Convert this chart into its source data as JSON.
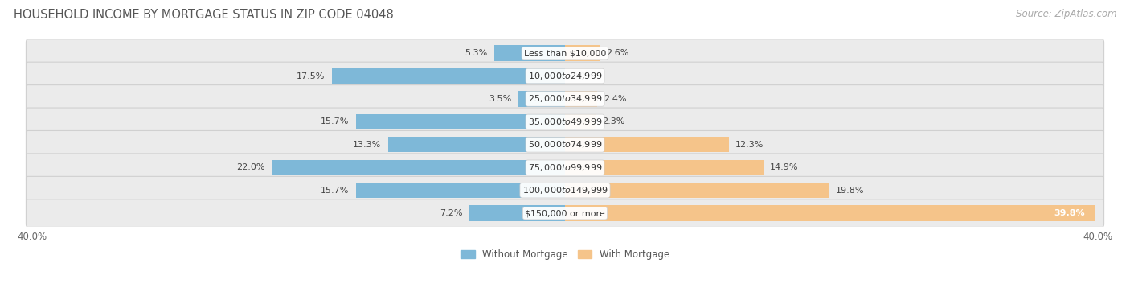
{
  "title": "HOUSEHOLD INCOME BY MORTGAGE STATUS IN ZIP CODE 04048",
  "source": "Source: ZipAtlas.com",
  "categories": [
    "Less than $10,000",
    "$10,000 to $24,999",
    "$25,000 to $34,999",
    "$35,000 to $49,999",
    "$50,000 to $74,999",
    "$75,000 to $99,999",
    "$100,000 to $149,999",
    "$150,000 or more"
  ],
  "without_mortgage": [
    5.3,
    17.5,
    3.5,
    15.7,
    13.3,
    22.0,
    15.7,
    7.2
  ],
  "with_mortgage": [
    2.6,
    0.0,
    2.4,
    2.3,
    12.3,
    14.9,
    19.8,
    39.8
  ],
  "color_without": "#7eb8d8",
  "color_with": "#f5c48a",
  "axis_max": 40.0,
  "title_fontsize": 10.5,
  "source_fontsize": 8.5,
  "label_fontsize": 8,
  "tick_fontsize": 8.5,
  "row_bg_color": "#ebebeb",
  "row_border_color": "#d0d0d0"
}
